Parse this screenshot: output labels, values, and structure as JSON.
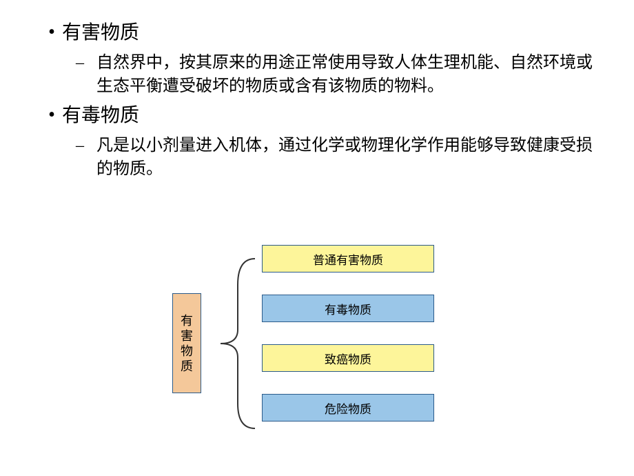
{
  "bullets": {
    "item1_title": "有害物质",
    "item1_desc": "自然界中，按其原来的用途正常使用导致人体生理机能、自然环境或生态平衡遭受破坏的物质或含有该物质的物料。",
    "item2_title": "有毒物质",
    "item2_desc": "凡是以小剂量进入机体，通过化学或物理化学作用能够导致健康受损的物质。"
  },
  "diagram": {
    "root_char1": "有",
    "root_char2": "害",
    "root_char3": "物",
    "root_char4": "质",
    "root_bg": "#f4c89a",
    "root_border": "#2a5a8a",
    "children": [
      {
        "label": "普通有害物质",
        "bg": "#fdf59a",
        "border": "#2a5a8a"
      },
      {
        "label": "有毒物质",
        "bg": "#9ac6e8",
        "border": "#2a5a8a"
      },
      {
        "label": "致癌物质",
        "bg": "#fdf59a",
        "border": "#2a5a8a"
      },
      {
        "label": "危险物质",
        "bg": "#9ac6e8",
        "border": "#2a5a8a"
      }
    ],
    "brace_color": "#333333"
  }
}
